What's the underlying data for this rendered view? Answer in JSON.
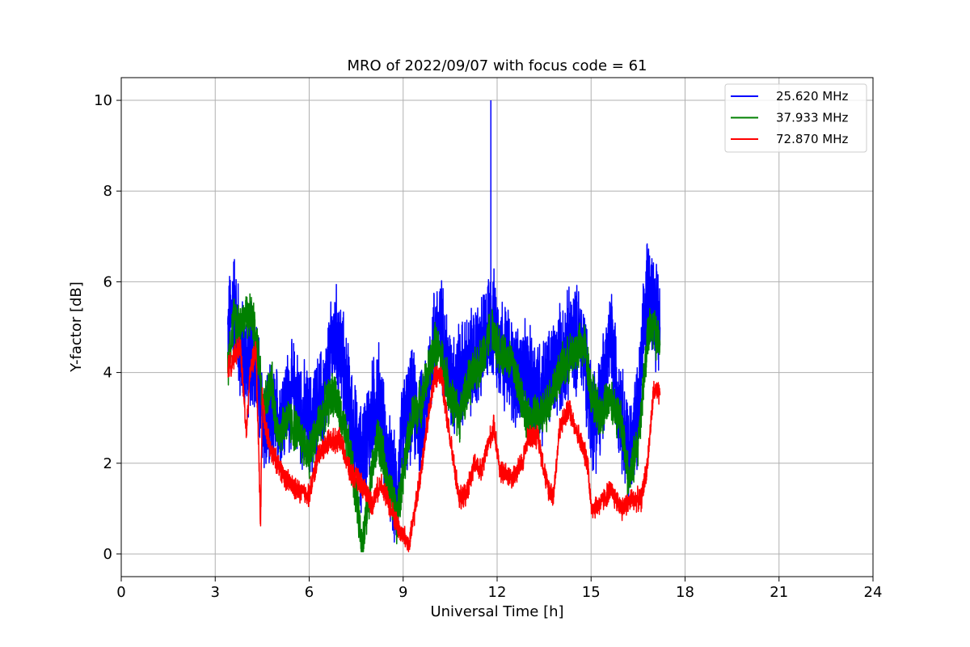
{
  "chart_data": {
    "type": "line",
    "title": "MRO of 2022/09/07 with focus code = 61",
    "xlabel": "Universal Time [h]",
    "ylabel": "Y-factor [dB]",
    "xlim": [
      0,
      24
    ],
    "ylim": [
      -0.5,
      10.5
    ],
    "xticks": [
      0,
      3,
      6,
      9,
      12,
      15,
      18,
      21,
      24
    ],
    "yticks": [
      0,
      2,
      4,
      6,
      8,
      10
    ],
    "grid": true,
    "legend_position": "top-right",
    "series": [
      {
        "name": "25.620 MHz",
        "color": "#0000ff",
        "noise": 1.4,
        "x": [
          3.4,
          3.6,
          3.8,
          4.0,
          4.2,
          4.4,
          4.5,
          4.7,
          5.0,
          5.5,
          6.0,
          6.5,
          6.8,
          7.0,
          7.3,
          7.6,
          8.0,
          8.2,
          8.5,
          8.8,
          9.0,
          9.3,
          9.6,
          10.0,
          10.2,
          10.5,
          11.0,
          11.5,
          11.8,
          12.0,
          12.5,
          13.0,
          13.5,
          14.0,
          14.5,
          14.8,
          15.0,
          15.3,
          15.6,
          16.0,
          16.2,
          16.5,
          16.8,
          17.0,
          17.2
        ],
        "y": [
          4.8,
          5.6,
          4.5,
          4.2,
          4.5,
          3.6,
          3.0,
          2.8,
          3.0,
          3.5,
          2.8,
          3.5,
          4.8,
          4.5,
          3.2,
          2.0,
          3.0,
          3.6,
          2.0,
          1.2,
          2.8,
          3.3,
          2.8,
          4.8,
          5.0,
          3.8,
          4.0,
          4.5,
          5.2,
          4.8,
          4.0,
          3.8,
          3.6,
          4.3,
          4.8,
          4.5,
          3.0,
          3.2,
          4.8,
          3.0,
          2.2,
          3.0,
          6.0,
          5.5,
          5.0
        ]
      },
      {
        "name": "37.933 MHz",
        "color": "#008000",
        "noise": 0.6,
        "x": [
          3.4,
          3.6,
          3.8,
          4.0,
          4.2,
          4.3,
          4.4,
          4.5,
          4.6,
          4.8,
          5.0,
          5.3,
          5.6,
          6.0,
          6.5,
          6.8,
          7.0,
          7.3,
          7.5,
          7.7,
          8.0,
          8.2,
          8.5,
          8.8,
          9.0,
          9.3,
          9.6,
          10.0,
          10.2,
          10.5,
          10.8,
          11.0,
          11.5,
          11.8,
          12.0,
          12.5,
          13.0,
          13.5,
          14.0,
          14.5,
          14.8,
          15.0,
          15.3,
          15.6,
          16.0,
          16.2,
          16.5,
          16.8,
          17.0,
          17.2
        ],
        "y": [
          4.2,
          5.2,
          5.1,
          5.3,
          5.2,
          4.6,
          4.4,
          3.5,
          3.3,
          3.8,
          2.6,
          3.0,
          2.7,
          2.2,
          3.2,
          3.6,
          3.0,
          2.2,
          1.3,
          0.2,
          1.8,
          2.6,
          1.6,
          0.8,
          1.8,
          3.0,
          3.4,
          4.6,
          4.4,
          3.5,
          3.0,
          3.6,
          4.3,
          5.0,
          4.6,
          4.2,
          2.9,
          3.1,
          4.0,
          4.5,
          4.6,
          3.6,
          3.0,
          3.5,
          2.8,
          1.6,
          2.4,
          4.8,
          5.0,
          4.6
        ]
      },
      {
        "name": "72.870 MHz",
        "color": "#ff0000",
        "noise": 0.3,
        "x": [
          3.4,
          3.6,
          3.8,
          4.0,
          4.1,
          4.3,
          4.45,
          4.5,
          4.6,
          4.8,
          5.0,
          5.3,
          5.6,
          6.0,
          6.3,
          6.6,
          7.0,
          7.3,
          7.6,
          7.8,
          8.0,
          8.3,
          8.6,
          8.9,
          9.2,
          9.5,
          9.8,
          10.0,
          10.2,
          10.5,
          10.8,
          11.0,
          11.3,
          11.5,
          11.7,
          11.9,
          12.1,
          12.5,
          12.8,
          13.0,
          13.3,
          13.6,
          13.8,
          14.0,
          14.3,
          14.6,
          14.9,
          15.0,
          15.3,
          15.6,
          16.0,
          16.3,
          16.6,
          16.8,
          17.0,
          17.2
        ],
        "y": [
          4.1,
          4.3,
          4.6,
          2.6,
          4.0,
          4.5,
          0.6,
          3.5,
          2.8,
          2.2,
          2.0,
          1.6,
          1.4,
          1.3,
          2.2,
          2.5,
          2.5,
          1.8,
          1.6,
          1.4,
          1.1,
          1.6,
          1.0,
          0.5,
          0.2,
          1.5,
          3.0,
          3.9,
          4.0,
          2.5,
          1.2,
          1.3,
          2.0,
          1.8,
          2.4,
          2.8,
          1.8,
          1.7,
          2.0,
          2.6,
          2.6,
          1.5,
          1.3,
          2.8,
          3.2,
          2.6,
          2.0,
          1.0,
          1.1,
          1.4,
          1.0,
          1.2,
          1.2,
          2.0,
          3.6,
          3.5
        ]
      }
    ]
  }
}
